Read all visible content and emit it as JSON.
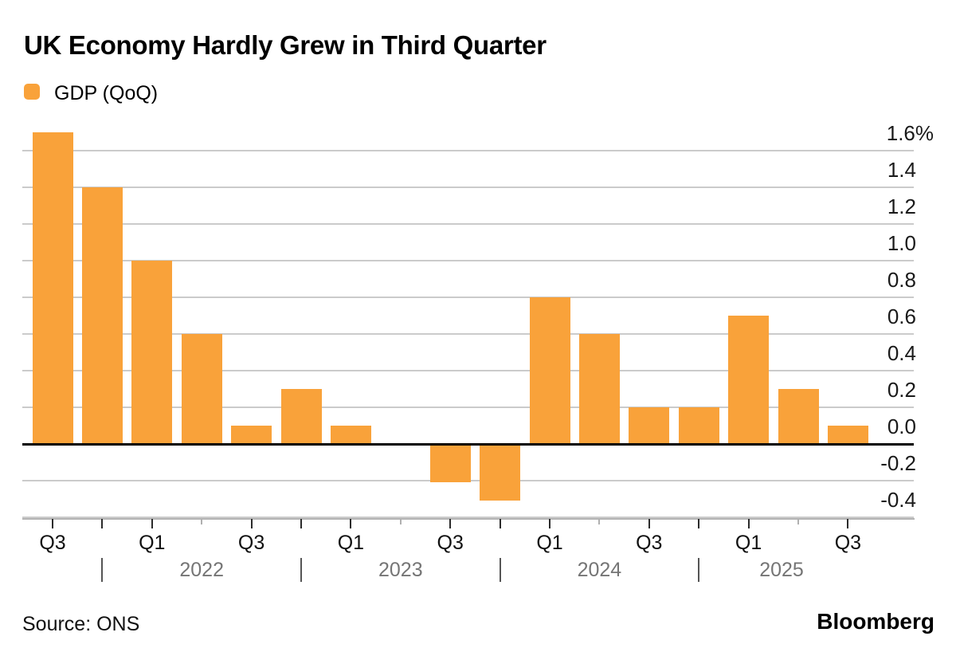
{
  "page": {
    "background": "#ffffff"
  },
  "header": {
    "title": "UK Economy Hardly Grew in Third Quarter"
  },
  "legend": {
    "label": "GDP (QoQ)",
    "swatch_color": "#F9A23A"
  },
  "chart_data": {
    "type": "bar",
    "title": "UK Economy Hardly Grew in Third Quarter",
    "series_name": "GDP (QoQ)",
    "unit": "percent, quarter-on-quarter",
    "bar_color": "#F9A23A",
    "grid": true,
    "legend_position": "top-left",
    "axis_side": "right",
    "categories": [
      "Q3 2021",
      "Q4 2021",
      "Q1 2022",
      "Q2 2022",
      "Q3 2022",
      "Q4 2022",
      "Q1 2023",
      "Q2 2023",
      "Q3 2023",
      "Q4 2023",
      "Q1 2024",
      "Q2 2024",
      "Q3 2024",
      "Q4 2024",
      "Q1 2025",
      "Q2 2025",
      "Q3 2025"
    ],
    "values": [
      1.7,
      1.4,
      1.0,
      0.6,
      0.1,
      0.3,
      0.1,
      0.0,
      -0.2,
      -0.3,
      0.8,
      0.6,
      0.2,
      0.2,
      0.7,
      0.3,
      0.1
    ],
    "ylim": [
      -0.45,
      1.72
    ],
    "y_ticks": [
      {
        "label": "1.6%",
        "value": 1.6
      },
      {
        "label": "1.4",
        "value": 1.4
      },
      {
        "label": "1.2",
        "value": 1.2
      },
      {
        "label": "1.0",
        "value": 1.0
      },
      {
        "label": "0.8",
        "value": 0.8
      },
      {
        "label": "0.6",
        "value": 0.6
      },
      {
        "label": "0.4",
        "value": 0.4
      },
      {
        "label": "0.2",
        "value": 0.2
      },
      {
        "label": "0.0",
        "value": 0.0
      },
      {
        "label": "-0.2",
        "value": -0.2
      },
      {
        "label": "-0.4",
        "value": -0.4
      }
    ],
    "x_quarter_labels": [
      {
        "index": 0,
        "label": "Q3"
      },
      {
        "index": 2,
        "label": "Q1"
      },
      {
        "index": 4,
        "label": "Q3"
      },
      {
        "index": 6,
        "label": "Q1"
      },
      {
        "index": 8,
        "label": "Q3"
      },
      {
        "index": 10,
        "label": "Q1"
      },
      {
        "index": 12,
        "label": "Q3"
      },
      {
        "index": 14,
        "label": "Q1"
      },
      {
        "index": 16,
        "label": "Q3"
      }
    ],
    "x_minor_tick_indices": [
      3,
      7,
      11,
      15
    ],
    "year_divider_indices": [
      1,
      5,
      9,
      13
    ],
    "year_labels": [
      {
        "label": "2022",
        "center_index": 3
      },
      {
        "label": "2023",
        "center_index": 7
      },
      {
        "label": "2024",
        "center_index": 11
      },
      {
        "label": "2025",
        "center_x": 981
      }
    ]
  },
  "footer": {
    "source": "Source: ONS",
    "brand": "Bloomberg"
  }
}
